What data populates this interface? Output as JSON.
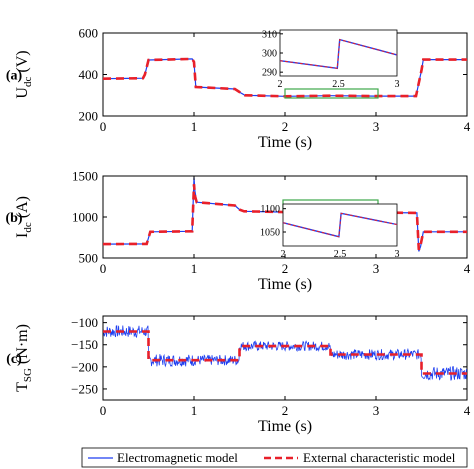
{
  "chart_data": [
    {
      "type": "line",
      "panel_label": "(a)",
      "ylabel_main": "U",
      "ylabel_sub": "dc",
      "ylabel_unit": "(V)",
      "xlabel": "Time (s)",
      "xlim": [
        0,
        4
      ],
      "ylim": [
        200,
        600
      ],
      "xticks": [
        "0",
        "1",
        "2",
        "3",
        "4"
      ],
      "yticks": [
        "200",
        "400",
        "600"
      ],
      "series": [
        {
          "name": "Electromagnetic model",
          "x": [
            0,
            0.44,
            0.46,
            0.5,
            0.98,
            1.0,
            1.02,
            1.45,
            1.52,
            1.56,
            2.0,
            2.5,
            3.0,
            3.44,
            3.5,
            3.52,
            4.0
          ],
          "y": [
            380,
            382,
            400,
            470,
            475,
            460,
            340,
            330,
            310,
            300,
            295,
            298,
            296,
            296,
            420,
            472,
            472
          ]
        },
        {
          "name": "External characteristic model",
          "x": [
            0,
            0.44,
            0.46,
            0.5,
            0.98,
            1.0,
            1.02,
            1.45,
            1.52,
            1.56,
            2.0,
            2.5,
            3.0,
            3.44,
            3.5,
            3.52,
            4.0
          ],
          "y": [
            380,
            382,
            400,
            470,
            475,
            460,
            340,
            330,
            310,
            300,
            295,
            298,
            296,
            296,
            420,
            472,
            472
          ]
        }
      ],
      "inset": {
        "xlim": [
          2,
          3
        ],
        "ylim": [
          288,
          312
        ],
        "xticks": [
          "2",
          "2.5",
          "3"
        ],
        "yticks": [
          "290",
          "300",
          "310"
        ],
        "x": [
          2.0,
          2.49,
          2.51,
          3.0
        ],
        "y": [
          296,
          292,
          307,
          299
        ]
      }
    },
    {
      "type": "line",
      "panel_label": "(b)",
      "ylabel_main": "I",
      "ylabel_sub": "dc",
      "ylabel_unit": "(A)",
      "xlabel": "Time (s)",
      "xlim": [
        0,
        4
      ],
      "ylim": [
        500,
        1500
      ],
      "xticks": [
        "0",
        "1",
        "2",
        "3",
        "4"
      ],
      "yticks": [
        "500",
        "1000",
        "1500"
      ],
      "series": [
        {
          "name": "Electromagnetic model",
          "x": [
            0,
            0.48,
            0.52,
            0.98,
            1.0,
            1.01,
            1.03,
            1.45,
            1.5,
            1.55,
            2.0,
            2.5,
            3.45,
            3.47,
            3.49,
            3.52,
            4.0
          ],
          "y": [
            670,
            672,
            820,
            825,
            1480,
            1320,
            1180,
            1140,
            1090,
            1070,
            1060,
            1060,
            1050,
            580,
            640,
            820,
            820
          ]
        },
        {
          "name": "External characteristic model",
          "x": [
            0,
            0.48,
            0.52,
            0.98,
            1.0,
            1.01,
            1.03,
            1.45,
            1.5,
            1.55,
            2.0,
            2.5,
            3.45,
            3.47,
            3.49,
            3.52,
            4.0
          ],
          "y": [
            670,
            672,
            820,
            825,
            1400,
            1260,
            1180,
            1140,
            1090,
            1070,
            1060,
            1060,
            1050,
            600,
            660,
            820,
            820
          ]
        }
      ],
      "inset": {
        "xlim": [
          2,
          3
        ],
        "ylim": [
          1020,
          1110
        ],
        "xticks": [
          "2",
          "2.5",
          "3"
        ],
        "yticks": [
          "1050",
          "1100"
        ],
        "x": [
          2.0,
          2.49,
          2.51,
          3.0
        ],
        "y": [
          1070,
          1040,
          1090,
          1066
        ]
      }
    },
    {
      "type": "line",
      "panel_label": "(c)",
      "ylabel_main": "T",
      "ylabel_sub": "SG",
      "ylabel_unit": "(N·m)",
      "xlabel": "Time (s)",
      "xlim": [
        0,
        4
      ],
      "ylim": [
        -275,
        -85
      ],
      "xticks": [
        "0",
        "1",
        "2",
        "3",
        "4"
      ],
      "yticks": [
        "-100",
        "-150",
        "-200",
        "-250"
      ],
      "series": [
        {
          "name": "Electromagnetic model",
          "segments": [
            {
              "x": [
                0,
                0.5
              ],
              "mean": -120,
              "band": 14
            },
            {
              "x": [
                0.5,
                1.0
              ],
              "mean": -185,
              "band": 14
            },
            {
              "x": [
                1.0,
                1.5
              ],
              "mean": -185,
              "band": 12
            },
            {
              "x": [
                1.5,
                2.5
              ],
              "mean": -153,
              "band": 11
            },
            {
              "x": [
                2.5,
                3.5
              ],
              "mean": -172,
              "band": 12
            },
            {
              "x": [
                3.5,
                4.0
              ],
              "mean": -215,
              "band": 16
            }
          ]
        },
        {
          "name": "External characteristic model",
          "x": [
            0,
            0.5,
            0.5,
            1.5,
            1.5,
            2.5,
            2.5,
            3.5,
            3.5,
            4.0
          ],
          "y": [
            -120,
            -120,
            -185,
            -185,
            -153,
            -153,
            -172,
            -172,
            -215,
            -215
          ]
        }
      ]
    }
  ],
  "legend": {
    "items": [
      {
        "label": "Electromagnetic model",
        "color": "#1f3ff0",
        "style": "solid"
      },
      {
        "label": "External characteristic model",
        "color": "#e8202a",
        "style": "dashed"
      }
    ]
  },
  "colors": {
    "em": "#1f3ff0",
    "ext": "#e8202a",
    "inset_box": "#3ea84a"
  }
}
